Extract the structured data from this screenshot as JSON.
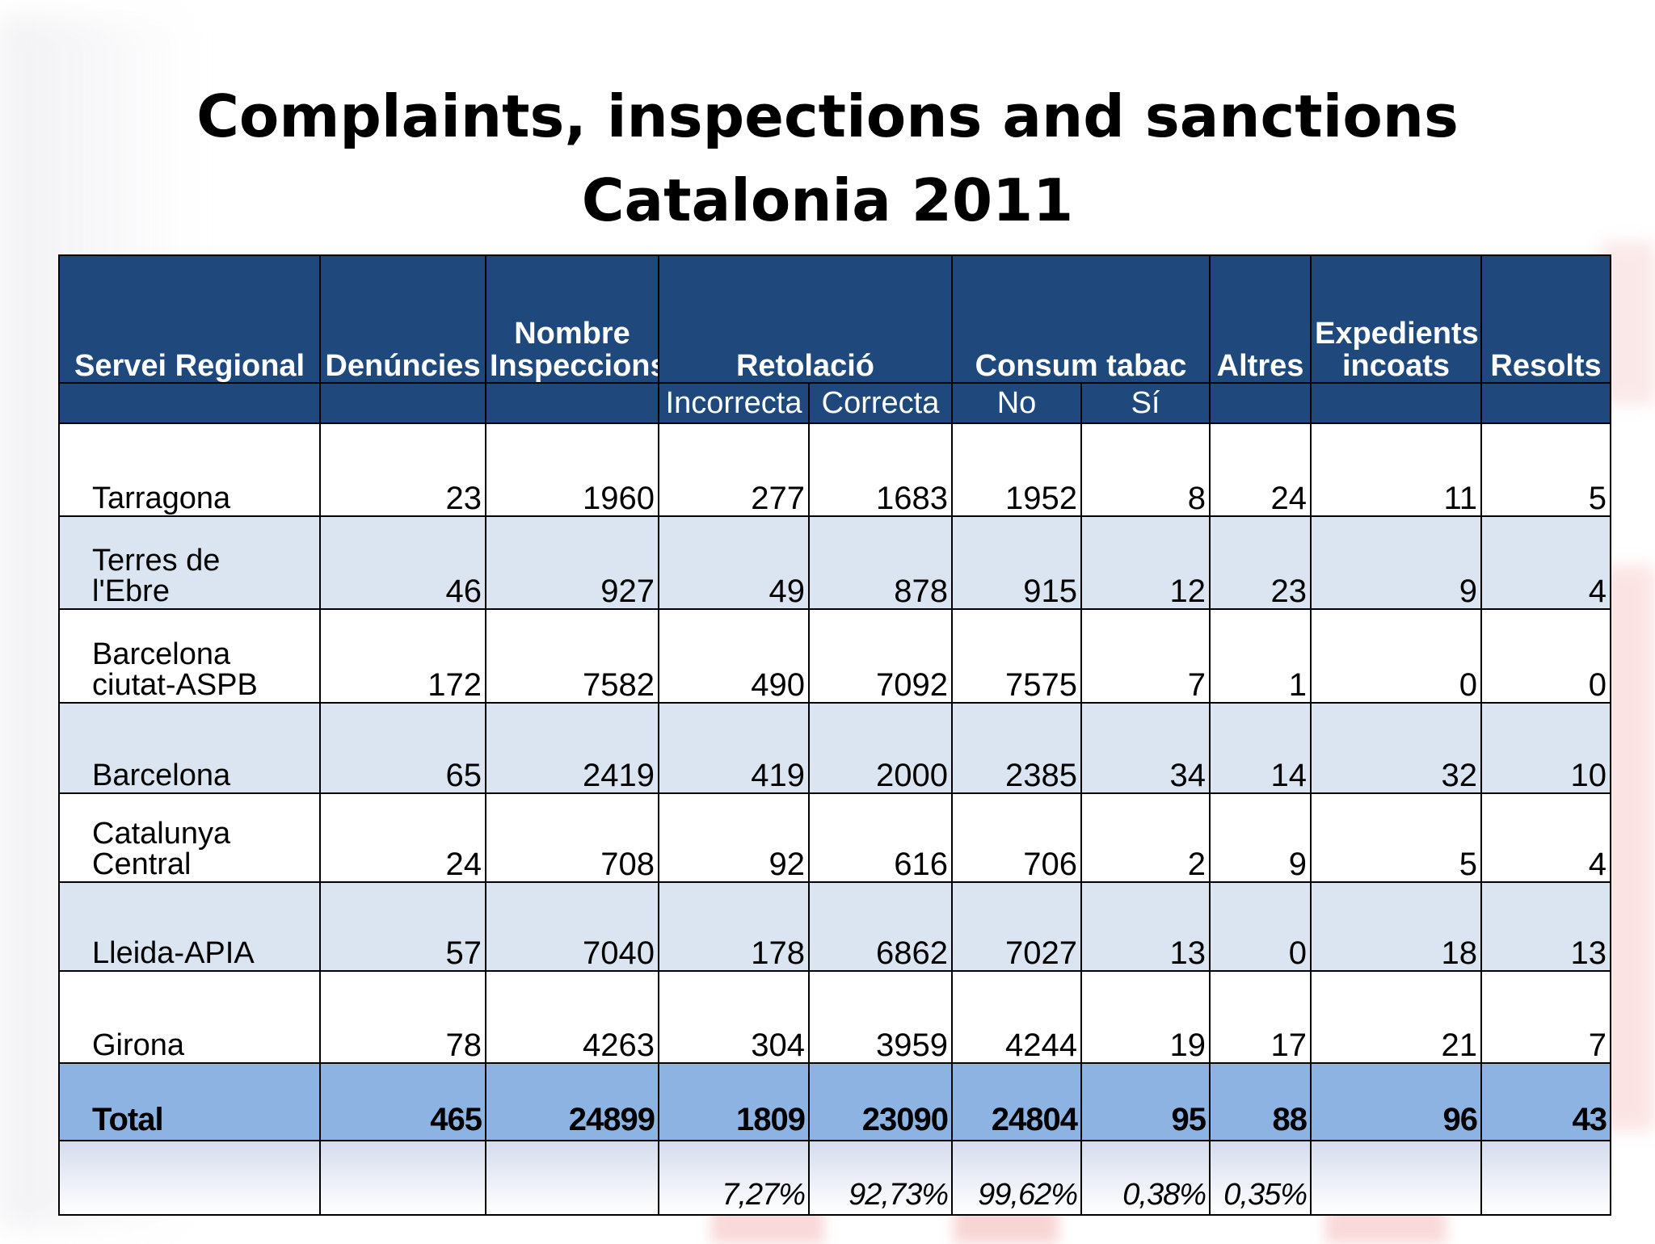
{
  "title": {
    "line1": "Complaints, inspections and sanctions",
    "line2": "Catalonia 2011"
  },
  "table": {
    "headers": {
      "servei": "Servei Regional",
      "denuncies": "Denúncies",
      "inspeccions_line1": "Nombre",
      "inspeccions_line2": "Inspeccions",
      "retolacio": "Retolació",
      "consum": "Consum tabac",
      "altres": "Altres",
      "expedients_line1": "Expedients",
      "expedients_line2": "incoats",
      "resolts": "Resolts"
    },
    "subheaders": {
      "incorrecta": "Incorrecta",
      "correcta": "Correcta",
      "no": "No",
      "si": "Sí"
    },
    "rows": [
      {
        "name1": "",
        "name2": "Tarragona",
        "denuncies": "23",
        "inspeccions": "1960",
        "incorrecta": "277",
        "correcta": "1683",
        "no": "1952",
        "si": "8",
        "altres": "24",
        "expedients": "11",
        "resolts": "5"
      },
      {
        "name1": "Terres de",
        "name2": "l'Ebre",
        "denuncies": "46",
        "inspeccions": "927",
        "incorrecta": "49",
        "correcta": "878",
        "no": "915",
        "si": "12",
        "altres": "23",
        "expedients": "9",
        "resolts": "4"
      },
      {
        "name1": "Barcelona",
        "name2": "ciutat-ASPB",
        "denuncies": "172",
        "inspeccions": "7582",
        "incorrecta": "490",
        "correcta": "7092",
        "no": "7575",
        "si": "7",
        "altres": "1",
        "expedients": "0",
        "resolts": "0"
      },
      {
        "name1": "",
        "name2": "Barcelona",
        "denuncies": "65",
        "inspeccions": "2419",
        "incorrecta": "419",
        "correcta": "2000",
        "no": "2385",
        "si": "34",
        "altres": "14",
        "expedients": "32",
        "resolts": "10"
      },
      {
        "name1": "Catalunya",
        "name2": "Central",
        "denuncies": "24",
        "inspeccions": "708",
        "incorrecta": "92",
        "correcta": "616",
        "no": "706",
        "si": "2",
        "altres": "9",
        "expedients": "5",
        "resolts": "4"
      },
      {
        "name1": "",
        "name2": "Lleida-APIA",
        "denuncies": "57",
        "inspeccions": "7040",
        "incorrecta": "178",
        "correcta": "6862",
        "no": "7027",
        "si": "13",
        "altres": "0",
        "expedients": "18",
        "resolts": "13"
      },
      {
        "name1": "",
        "name2": "Girona",
        "denuncies": "78",
        "inspeccions": "4263",
        "incorrecta": "304",
        "correcta": "3959",
        "no": "4244",
        "si": "19",
        "altres": "17",
        "expedients": "21",
        "resolts": "7"
      }
    ],
    "total": {
      "name": "Total",
      "denuncies": "465",
      "inspeccions": "24899",
      "incorrecta": "1809",
      "correcta": "23090",
      "no": "24804",
      "si": "95",
      "altres": "88",
      "expedients": "96",
      "resolts": "43"
    },
    "percentages": {
      "incorrecta": "7,27%",
      "correcta": "92,73%",
      "no": "99,62%",
      "si": "0,38%",
      "altres": "0,35%"
    }
  },
  "colors": {
    "header_bg": "#1f497d",
    "row_alt": "#dbe5f1",
    "total_bg": "#8db3e2"
  }
}
